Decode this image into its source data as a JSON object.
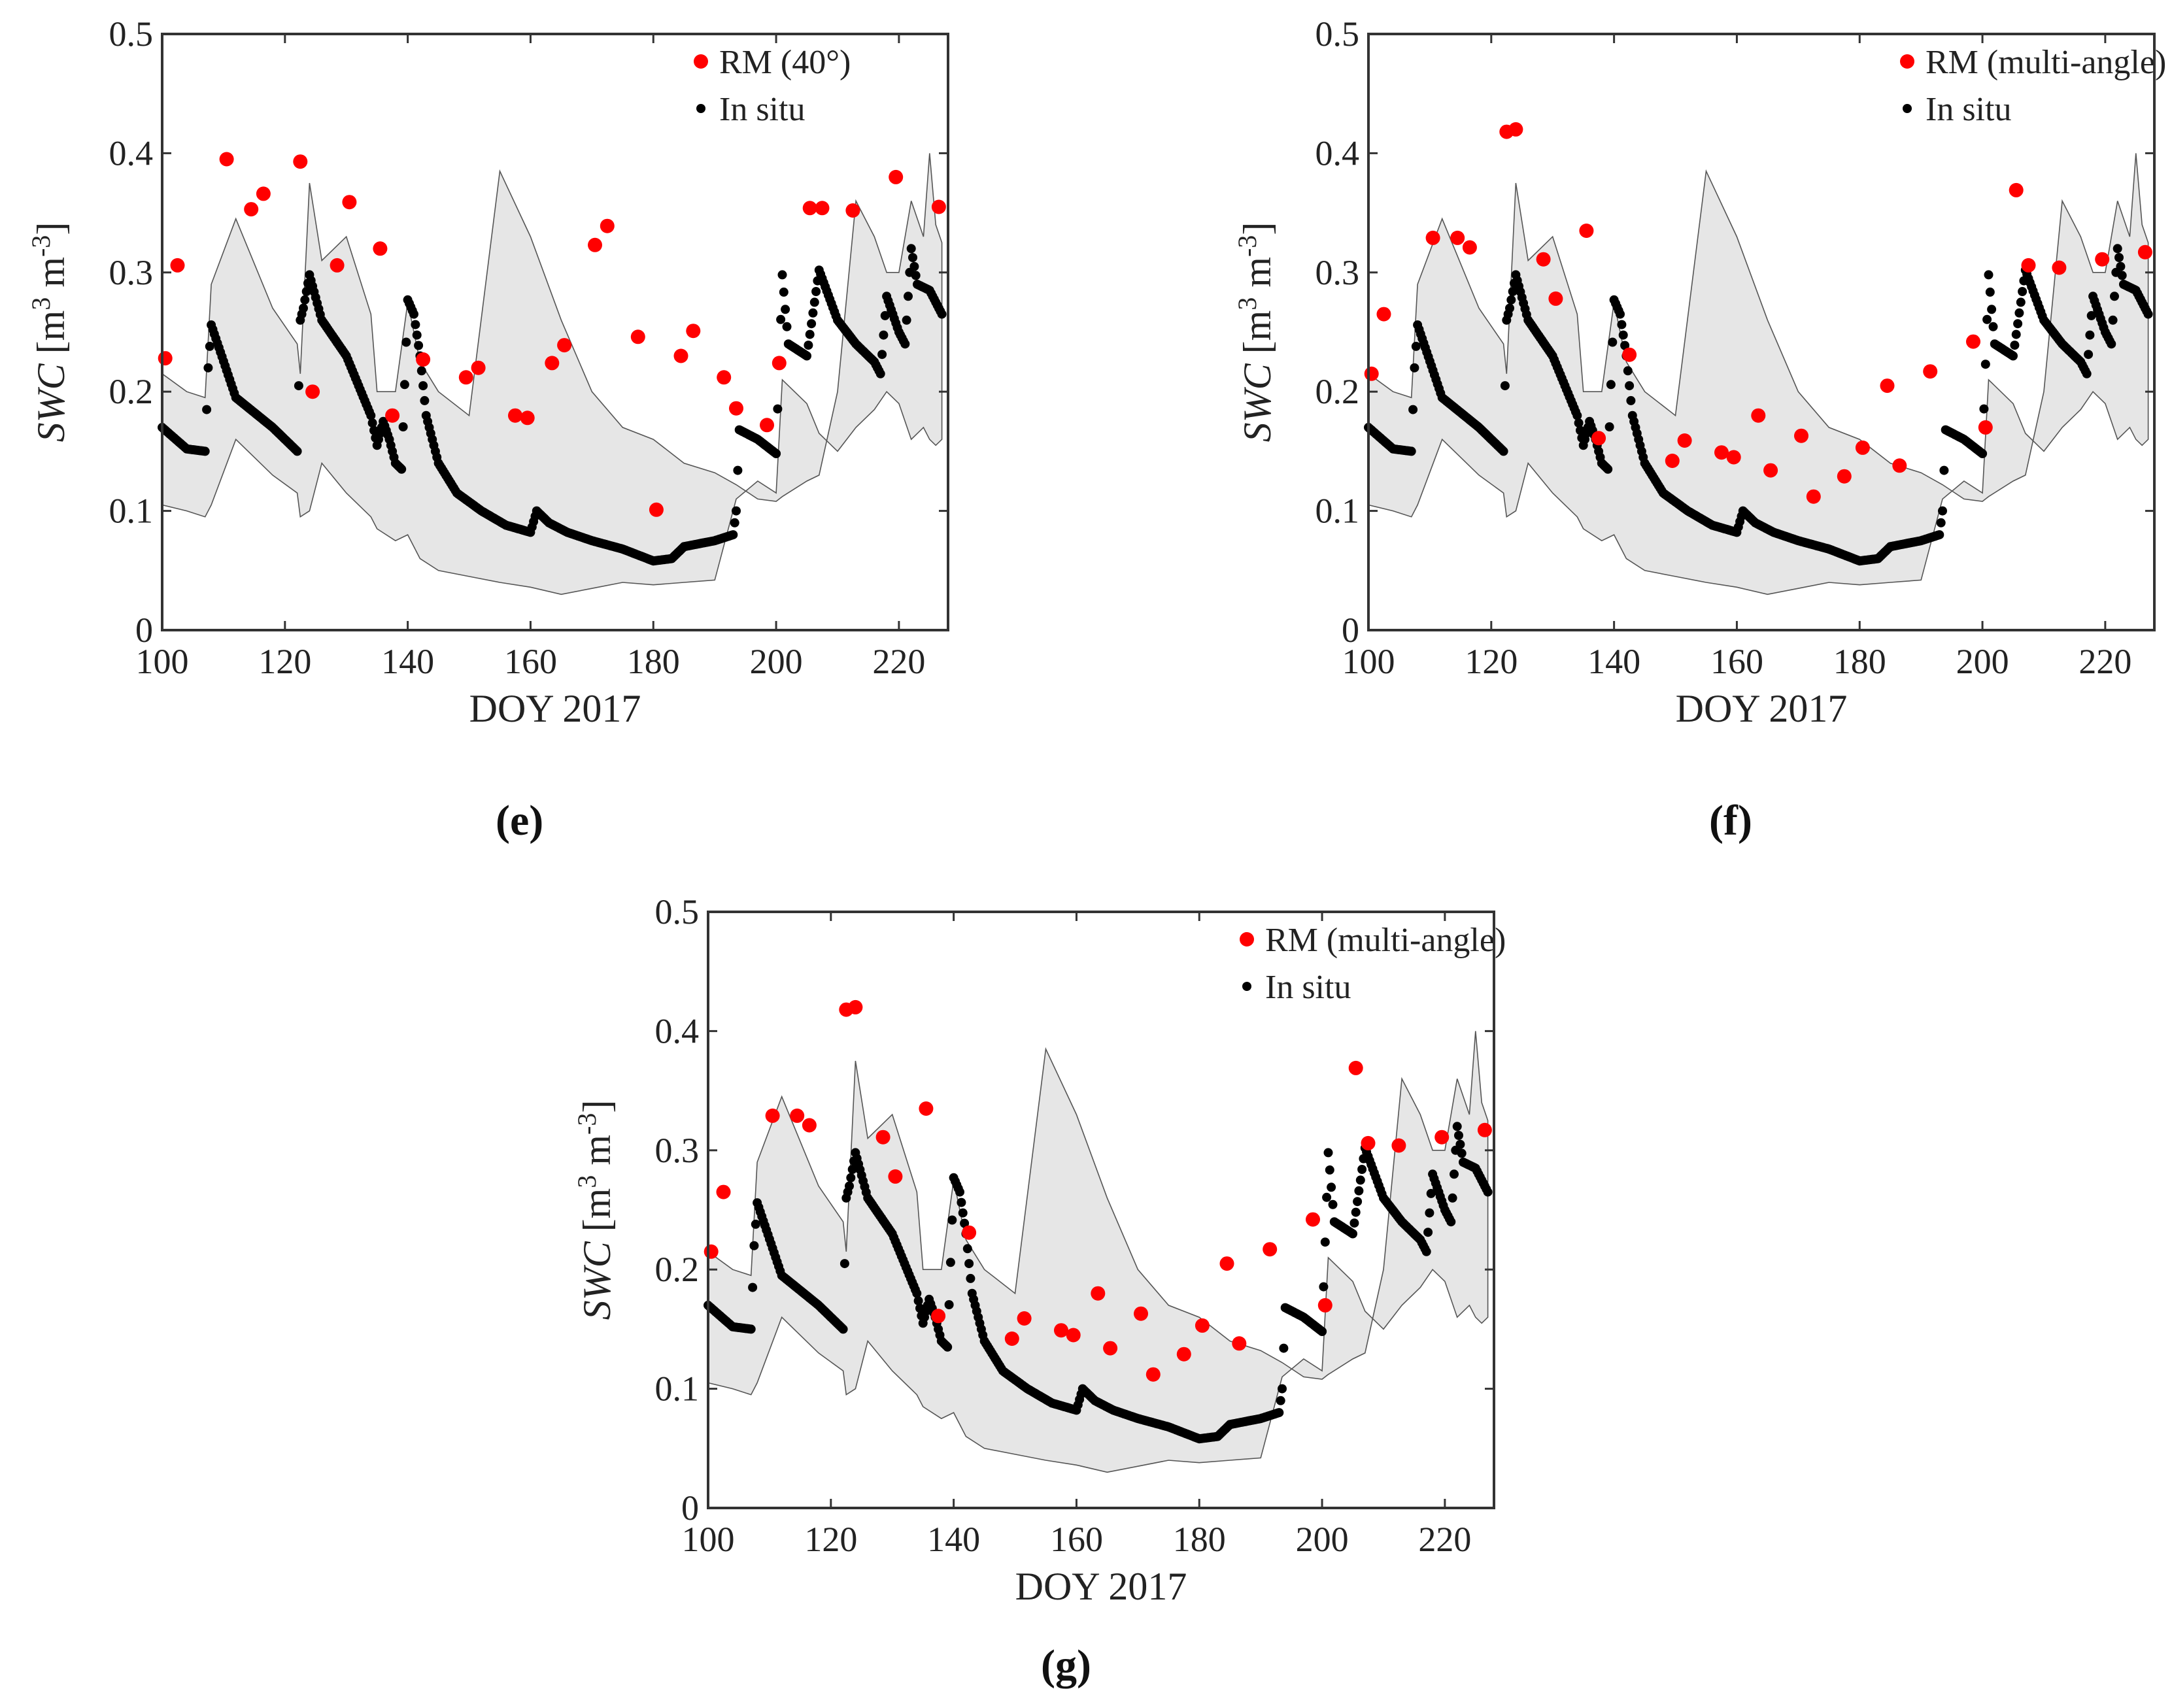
{
  "chart_data": [
    {
      "type": "scatter",
      "panel": "e",
      "caption": "(e)",
      "title": "",
      "xlabel": "DOY 2017",
      "ylabel_italic": "SWC",
      "ylabel_units": "[m3 m-3]",
      "xlim": [
        100,
        228
      ],
      "ylim": [
        0,
        0.5
      ],
      "xticks": [
        "100",
        "120",
        "140",
        "160",
        "180",
        "200",
        "220"
      ],
      "yticks": [
        "0",
        "0.1",
        "0.2",
        "0.3",
        "0.4",
        "0.5"
      ],
      "legend_position": "top-right",
      "series": [
        {
          "name": "RM (40°)",
          "color": "#ff0000",
          "x": [
            100.5,
            102.5,
            110.5,
            114.5,
            116.5,
            122.5,
            124.5,
            128.5,
            130.5,
            135.5,
            137.5,
            142.5,
            149.5,
            151.5,
            157.5,
            159.5,
            163.5,
            165.5,
            170.5,
            172.5,
            177.5,
            180.5,
            184.5,
            186.5,
            191.5,
            193.5,
            198.5,
            200.5,
            205.5,
            207.5,
            212.5,
            219.5,
            226.5
          ],
          "y": [
            0.228,
            0.306,
            0.395,
            0.353,
            0.366,
            0.393,
            0.2,
            0.306,
            0.359,
            0.32,
            0.18,
            0.227,
            0.212,
            0.22,
            0.18,
            0.178,
            0.224,
            0.239,
            0.323,
            0.339,
            0.246,
            0.101,
            0.23,
            0.251,
            0.212,
            0.186,
            0.172,
            0.224,
            0.354,
            0.354,
            0.352,
            0.38,
            0.355
          ]
        },
        {
          "name": "In situ",
          "color": "#000000",
          "x": [
            100,
            104,
            107,
            107.5,
            108,
            112,
            118,
            122,
            122.5,
            123,
            124,
            126,
            130,
            134,
            135,
            136,
            137,
            138,
            139,
            140,
            141,
            142,
            143,
            145,
            148,
            152,
            156,
            158,
            160,
            161,
            163,
            166,
            170,
            175,
            180,
            183,
            185,
            190,
            193,
            193.5,
            194,
            197,
            200,
            201,
            202,
            205,
            207,
            210,
            213,
            216,
            217,
            218,
            220,
            221,
            222,
            223,
            225,
            227
          ],
          "y": [
            0.17,
            0.152,
            0.15,
            0.22,
            0.256,
            0.195,
            0.17,
            0.15,
            0.26,
            0.27,
            0.298,
            0.26,
            0.23,
            0.18,
            0.155,
            0.175,
            0.16,
            0.14,
            0.135,
            0.277,
            0.265,
            0.23,
            0.18,
            0.14,
            0.115,
            0.1,
            0.088,
            0.085,
            0.082,
            0.1,
            0.09,
            0.082,
            0.075,
            0.068,
            0.058,
            0.06,
            0.07,
            0.075,
            0.08,
            0.1,
            0.168,
            0.16,
            0.148,
            0.298,
            0.24,
            0.23,
            0.302,
            0.26,
            0.24,
            0.225,
            0.215,
            0.28,
            0.25,
            0.24,
            0.32,
            0.29,
            0.285,
            0.265
          ]
        }
      ],
      "band_upper": [
        0.215,
        0.2,
        0.195,
        0.29,
        0.345,
        0.27,
        0.24,
        0.215,
        0.375,
        0.31,
        0.33,
        0.265,
        0.2,
        0.2,
        0.275,
        0.225,
        0.2,
        0.18,
        0.385,
        0.33,
        0.26,
        0.2,
        0.17,
        0.16,
        0.14,
        0.132,
        0.122,
        0.11,
        0.108,
        0.112,
        0.125,
        0.13,
        0.2,
        0.36,
        0.33,
        0.3,
        0.3,
        0.36,
        0.33,
        0.4,
        0.34,
        0.325
      ],
      "band_lower": [
        0.105,
        0.1,
        0.095,
        0.105,
        0.16,
        0.13,
        0.115,
        0.095,
        0.1,
        0.14,
        0.115,
        0.095,
        0.085,
        0.075,
        0.08,
        0.06,
        0.05,
        0.045,
        0.04,
        0.036,
        0.03,
        0.035,
        0.04,
        0.038,
        0.04,
        0.042,
        0.11,
        0.125,
        0.115,
        0.21,
        0.19,
        0.165,
        0.15,
        0.17,
        0.185,
        0.2,
        0.19,
        0.16,
        0.17,
        0.16,
        0.155,
        0.16
      ],
      "band_x": [
        100,
        104,
        107,
        108,
        112,
        118,
        122,
        122.5,
        124,
        126,
        130,
        134,
        135,
        138,
        140,
        142,
        145,
        150,
        155,
        160,
        165,
        170,
        175,
        180,
        185,
        190,
        193.5,
        197,
        200,
        201,
        205,
        207,
        210,
        213,
        216,
        218,
        220,
        222,
        224,
        225,
        226,
        227
      ]
    },
    {
      "type": "scatter",
      "panel": "f",
      "caption": "(f)",
      "title": "",
      "xlabel": "DOY 2017",
      "ylabel_italic": "SWC",
      "ylabel_units": "[m3 m-3]",
      "xlim": [
        100,
        228
      ],
      "ylim": [
        0,
        0.5
      ],
      "xticks": [
        "100",
        "120",
        "140",
        "160",
        "180",
        "200",
        "220"
      ],
      "yticks": [
        "0",
        "0.1",
        "0.2",
        "0.3",
        "0.4",
        "0.5"
      ],
      "legend_position": "top-right",
      "series": [
        {
          "name": "RM (multi-angle)",
          "color": "#ff0000",
          "x": [
            100.5,
            102.5,
            110.5,
            114.5,
            116.5,
            122.5,
            124.0,
            128.5,
            130.5,
            135.5,
            137.5,
            142.5,
            149.5,
            151.5,
            157.5,
            159.5,
            163.5,
            165.5,
            170.5,
            172.5,
            177.5,
            180.5,
            184.5,
            186.5,
            191.5,
            198.5,
            200.5,
            205.5,
            207.5,
            212.5,
            219.5,
            226.5
          ],
          "y": [
            0.215,
            0.265,
            0.329,
            0.329,
            0.321,
            0.418,
            0.42,
            0.311,
            0.278,
            0.335,
            0.161,
            0.231,
            0.142,
            0.159,
            0.149,
            0.145,
            0.18,
            0.134,
            0.163,
            0.112,
            0.129,
            0.153,
            0.205,
            0.138,
            0.217,
            0.242,
            0.17,
            0.369,
            0.306,
            0.304,
            0.311,
            0.317
          ]
        },
        {
          "name": "In situ",
          "color": "#000000",
          "x": [
            100,
            104,
            107,
            107.5,
            108,
            112,
            118,
            122,
            122.5,
            123,
            124,
            126,
            130,
            134,
            135,
            136,
            137,
            138,
            139,
            140,
            141,
            142,
            143,
            145,
            148,
            152,
            156,
            158,
            160,
            161,
            163,
            166,
            170,
            175,
            180,
            183,
            185,
            190,
            193,
            193.5,
            194,
            197,
            200,
            201,
            202,
            205,
            207,
            210,
            213,
            216,
            217,
            218,
            220,
            221,
            222,
            223,
            225,
            227
          ],
          "y": [
            0.17,
            0.152,
            0.15,
            0.22,
            0.256,
            0.195,
            0.17,
            0.15,
            0.26,
            0.27,
            0.298,
            0.26,
            0.23,
            0.18,
            0.155,
            0.175,
            0.16,
            0.14,
            0.135,
            0.277,
            0.265,
            0.23,
            0.18,
            0.14,
            0.115,
            0.1,
            0.088,
            0.085,
            0.082,
            0.1,
            0.09,
            0.082,
            0.075,
            0.068,
            0.058,
            0.06,
            0.07,
            0.075,
            0.08,
            0.1,
            0.168,
            0.16,
            0.148,
            0.298,
            0.24,
            0.23,
            0.302,
            0.26,
            0.24,
            0.225,
            0.215,
            0.28,
            0.25,
            0.24,
            0.32,
            0.29,
            0.285,
            0.265
          ]
        }
      ],
      "band_upper": [
        0.215,
        0.2,
        0.195,
        0.29,
        0.345,
        0.27,
        0.24,
        0.215,
        0.375,
        0.31,
        0.33,
        0.265,
        0.2,
        0.2,
        0.275,
        0.225,
        0.2,
        0.18,
        0.385,
        0.33,
        0.26,
        0.2,
        0.17,
        0.16,
        0.14,
        0.132,
        0.122,
        0.11,
        0.108,
        0.112,
        0.125,
        0.13,
        0.2,
        0.36,
        0.33,
        0.3,
        0.3,
        0.36,
        0.33,
        0.4,
        0.34,
        0.325
      ],
      "band_lower": [
        0.105,
        0.1,
        0.095,
        0.105,
        0.16,
        0.13,
        0.115,
        0.095,
        0.1,
        0.14,
        0.115,
        0.095,
        0.085,
        0.075,
        0.08,
        0.06,
        0.05,
        0.045,
        0.04,
        0.036,
        0.03,
        0.035,
        0.04,
        0.038,
        0.04,
        0.042,
        0.11,
        0.125,
        0.115,
        0.21,
        0.19,
        0.165,
        0.15,
        0.17,
        0.185,
        0.2,
        0.19,
        0.16,
        0.17,
        0.16,
        0.155,
        0.16
      ],
      "band_x": [
        100,
        104,
        107,
        108,
        112,
        118,
        122,
        122.5,
        124,
        126,
        130,
        134,
        135,
        138,
        140,
        142,
        145,
        150,
        155,
        160,
        165,
        170,
        175,
        180,
        185,
        190,
        193.5,
        197,
        200,
        201,
        205,
        207,
        210,
        213,
        216,
        218,
        220,
        222,
        224,
        225,
        226,
        227
      ]
    },
    {
      "type": "scatter",
      "panel": "g",
      "caption": "(g)",
      "title": "",
      "xlabel": "DOY 2017",
      "ylabel_italic": "SWC",
      "ylabel_units": "[m3 m-3]",
      "xlim": [
        100,
        228
      ],
      "ylim": [
        0,
        0.5
      ],
      "xticks": [
        "100",
        "120",
        "140",
        "160",
        "180",
        "200",
        "220"
      ],
      "yticks": [
        "0",
        "0.1",
        "0.2",
        "0.3",
        "0.4",
        "0.5"
      ],
      "legend_position": "top-right",
      "series": [
        {
          "name": "RM (multi-angle)",
          "color": "#ff0000",
          "x": [
            100.5,
            102.5,
            110.5,
            114.5,
            116.5,
            122.5,
            124.0,
            128.5,
            130.5,
            135.5,
            137.5,
            142.5,
            149.5,
            151.5,
            157.5,
            159.5,
            163.5,
            165.5,
            170.5,
            172.5,
            177.5,
            180.5,
            184.5,
            186.5,
            191.5,
            198.5,
            200.5,
            205.5,
            207.5,
            212.5,
            219.5,
            226.5
          ],
          "y": [
            0.215,
            0.265,
            0.329,
            0.329,
            0.321,
            0.418,
            0.42,
            0.311,
            0.278,
            0.335,
            0.161,
            0.231,
            0.142,
            0.159,
            0.149,
            0.145,
            0.18,
            0.134,
            0.163,
            0.112,
            0.129,
            0.153,
            0.205,
            0.138,
            0.217,
            0.242,
            0.17,
            0.369,
            0.306,
            0.304,
            0.311,
            0.317
          ]
        },
        {
          "name": "In situ",
          "color": "#000000",
          "x": [
            100,
            104,
            107,
            107.5,
            108,
            112,
            118,
            122,
            122.5,
            123,
            124,
            126,
            130,
            134,
            135,
            136,
            137,
            138,
            139,
            140,
            141,
            142,
            143,
            145,
            148,
            152,
            156,
            158,
            160,
            161,
            163,
            166,
            170,
            175,
            180,
            183,
            185,
            190,
            193,
            193.5,
            194,
            197,
            200,
            201,
            202,
            205,
            207,
            210,
            213,
            216,
            217,
            218,
            220,
            221,
            222,
            223,
            225,
            227
          ],
          "y": [
            0.17,
            0.152,
            0.15,
            0.22,
            0.256,
            0.195,
            0.17,
            0.15,
            0.26,
            0.27,
            0.298,
            0.26,
            0.23,
            0.18,
            0.155,
            0.175,
            0.16,
            0.14,
            0.135,
            0.277,
            0.265,
            0.23,
            0.18,
            0.14,
            0.115,
            0.1,
            0.088,
            0.085,
            0.082,
            0.1,
            0.09,
            0.082,
            0.075,
            0.068,
            0.058,
            0.06,
            0.07,
            0.075,
            0.08,
            0.1,
            0.168,
            0.16,
            0.148,
            0.298,
            0.24,
            0.23,
            0.302,
            0.26,
            0.24,
            0.225,
            0.215,
            0.28,
            0.25,
            0.24,
            0.32,
            0.29,
            0.285,
            0.265
          ]
        }
      ],
      "band_upper": [
        0.215,
        0.2,
        0.195,
        0.29,
        0.345,
        0.27,
        0.24,
        0.215,
        0.375,
        0.31,
        0.33,
        0.265,
        0.2,
        0.2,
        0.275,
        0.225,
        0.2,
        0.18,
        0.385,
        0.33,
        0.26,
        0.2,
        0.17,
        0.16,
        0.14,
        0.132,
        0.122,
        0.11,
        0.108,
        0.112,
        0.125,
        0.13,
        0.2,
        0.36,
        0.33,
        0.3,
        0.3,
        0.36,
        0.33,
        0.4,
        0.34,
        0.325
      ],
      "band_lower": [
        0.105,
        0.1,
        0.095,
        0.105,
        0.16,
        0.13,
        0.115,
        0.095,
        0.1,
        0.14,
        0.115,
        0.095,
        0.085,
        0.075,
        0.08,
        0.06,
        0.05,
        0.045,
        0.04,
        0.036,
        0.03,
        0.035,
        0.04,
        0.038,
        0.04,
        0.042,
        0.11,
        0.125,
        0.115,
        0.21,
        0.19,
        0.165,
        0.15,
        0.17,
        0.185,
        0.2,
        0.19,
        0.16,
        0.17,
        0.16,
        0.155,
        0.16
      ],
      "band_x": [
        100,
        104,
        107,
        108,
        112,
        118,
        122,
        122.5,
        124,
        126,
        130,
        134,
        135,
        138,
        140,
        142,
        145,
        150,
        155,
        160,
        165,
        170,
        175,
        180,
        185,
        190,
        193.5,
        197,
        200,
        201,
        205,
        207,
        210,
        213,
        216,
        218,
        220,
        222,
        224,
        225,
        226,
        227
      ]
    }
  ]
}
